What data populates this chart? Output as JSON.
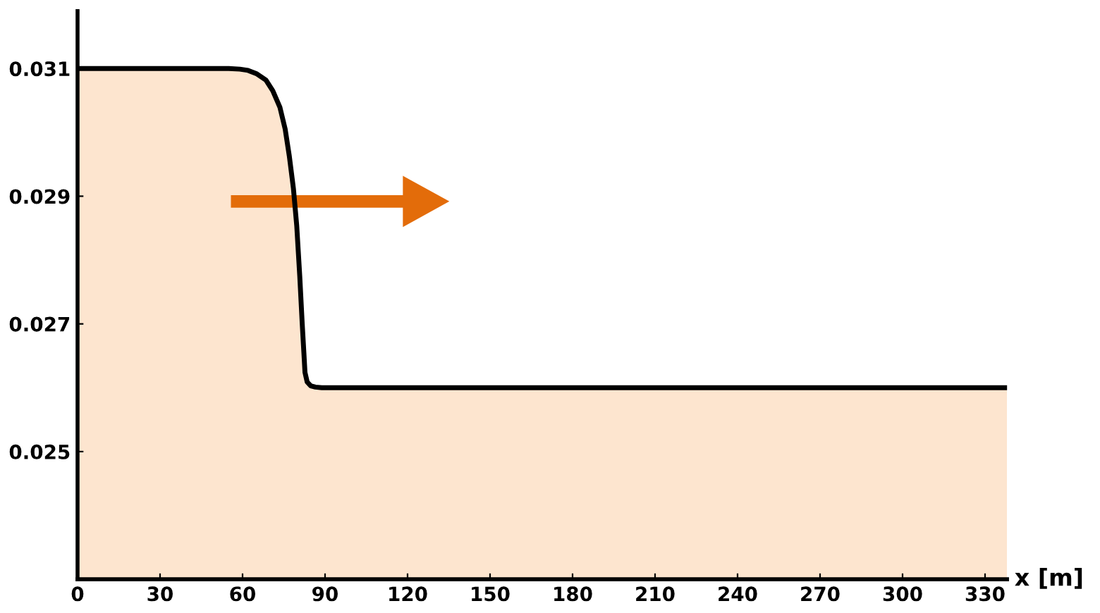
{
  "chart_data": {
    "type": "area",
    "xlabel": "x [m]",
    "x": [
      0,
      30,
      55,
      59,
      62,
      65,
      68.5,
      71,
      73.6,
      75.5,
      77,
      78.5,
      79.7,
      80.8,
      81.7,
      82.3,
      82.7,
      83.5,
      84.8,
      86.5,
      88.8,
      120,
      200,
      300,
      338
    ],
    "series": [
      {
        "color": "#fde5cf",
        "values": [
          0.031,
          0.031,
          0.031,
          0.03099,
          0.03097,
          0.03092,
          0.03082,
          0.03065,
          0.03039,
          0.03005,
          0.02963,
          0.02912,
          0.02854,
          0.02775,
          0.027,
          0.02655,
          0.02624,
          0.02609,
          0.02603,
          0.02601,
          0.026,
          0.026,
          0.026,
          0.026,
          0.026
        ]
      }
    ],
    "xlim": [
      0,
      338
    ],
    "xticks": [
      0,
      30,
      60,
      90,
      120,
      150,
      180,
      210,
      240,
      270,
      300,
      330
    ],
    "ylim": [
      0.023,
      0.0319
    ],
    "yticks": [
      0.025,
      0.027,
      0.029,
      0.031
    ],
    "grid": false
  }
}
